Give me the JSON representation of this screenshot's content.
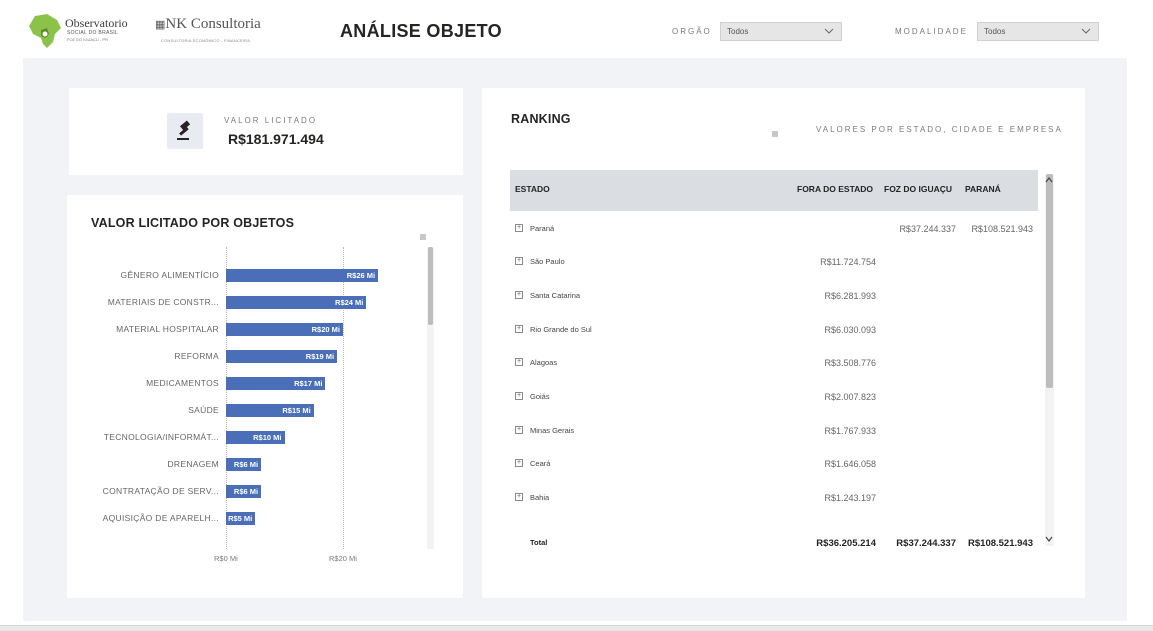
{
  "header": {
    "logo1": {
      "line1": "Observatorio",
      "line2": "SOCIAL DO BRASIL",
      "line3": "FOZ DO IGUAÇU - PR"
    },
    "logo2": {
      "line1": "NK Consultoria",
      "line2": "CONSULTORIA ECONÔMICO - FINANCEIRA"
    },
    "title": "ANÁLISE OBJETO",
    "filters": {
      "orgao": {
        "label": "ORGÃO",
        "value": "Todos"
      },
      "modalidade": {
        "label": "MODALIDADE",
        "value": "Todos"
      }
    }
  },
  "kpi": {
    "label": "VALOR LICITADO",
    "value": "R$181.971.494"
  },
  "objects_chart": {
    "title": "VALOR LICITADO POR OBJETOS",
    "axis_ticks": [
      "R$0 Mi",
      "R$20 Mi"
    ],
    "chart_data": {
      "type": "bar",
      "orientation": "horizontal",
      "title": "VALOR LICITADO POR OBJETOS",
      "categories": [
        "GÊNERO ALIMENTÍCIO",
        "MATERIAIS DE CONSTR...",
        "MATERIAL HOSPITALAR",
        "REFORMA",
        "MEDICAMENTOS",
        "SAÚDE",
        "TECNOLOGIA/INFORMÁT...",
        "DRENAGEM",
        "CONTRATAÇÃO DE SERV...",
        "AQUISIÇÃO DE APARELH..."
      ],
      "values": [
        26,
        24,
        20,
        19,
        17,
        15,
        10,
        6,
        6,
        5
      ],
      "value_labels": [
        "R$26 Mi",
        "R$24 Mi",
        "R$20 Mi",
        "R$19 Mi",
        "R$17 Mi",
        "R$15 Mi",
        "R$10 Mi",
        "R$6 Mi",
        "R$6 Mi",
        "R$5 Mi"
      ],
      "xlim": [
        0,
        26.5
      ],
      "grid": true,
      "bar_color": "#4a6fb8"
    }
  },
  "ranking": {
    "title": "RANKING",
    "subtitle": "VALORES POR ESTADO, CIDADE E EMPRESA",
    "columns": [
      "ESTADO",
      "FORA DO ESTADO",
      "FOZ DO IGUAÇU",
      "PARANÁ"
    ],
    "rows": [
      {
        "estado": "Paraná",
        "fora": "",
        "foz": "R$37.244.337",
        "parana": "R$108.521.943"
      },
      {
        "estado": "São Paulo",
        "fora": "R$11.724.754",
        "foz": "",
        "parana": ""
      },
      {
        "estado": "Santa Catarina",
        "fora": "R$6.281.993",
        "foz": "",
        "parana": ""
      },
      {
        "estado": "Rio Grande do Sul",
        "fora": "R$6.030.093",
        "foz": "",
        "parana": ""
      },
      {
        "estado": "Alagoas",
        "fora": "R$3.508.776",
        "foz": "",
        "parana": ""
      },
      {
        "estado": "Goiás",
        "fora": "R$2.007.823",
        "foz": "",
        "parana": ""
      },
      {
        "estado": "Minas Gerais",
        "fora": "R$1.767.933",
        "foz": "",
        "parana": ""
      },
      {
        "estado": "Ceará",
        "fora": "R$1.646.058",
        "foz": "",
        "parana": ""
      },
      {
        "estado": "Bahia",
        "fora": "R$1.243.197",
        "foz": "",
        "parana": ""
      }
    ],
    "total": {
      "label": "Total",
      "fora": "R$36.205.214",
      "foz": "R$37.244.337",
      "parana": "R$108.521.943"
    }
  },
  "colors": {
    "accent": "#4a6fb8",
    "canvas": "#f1f3f7",
    "header_bg": "#dadde2"
  }
}
